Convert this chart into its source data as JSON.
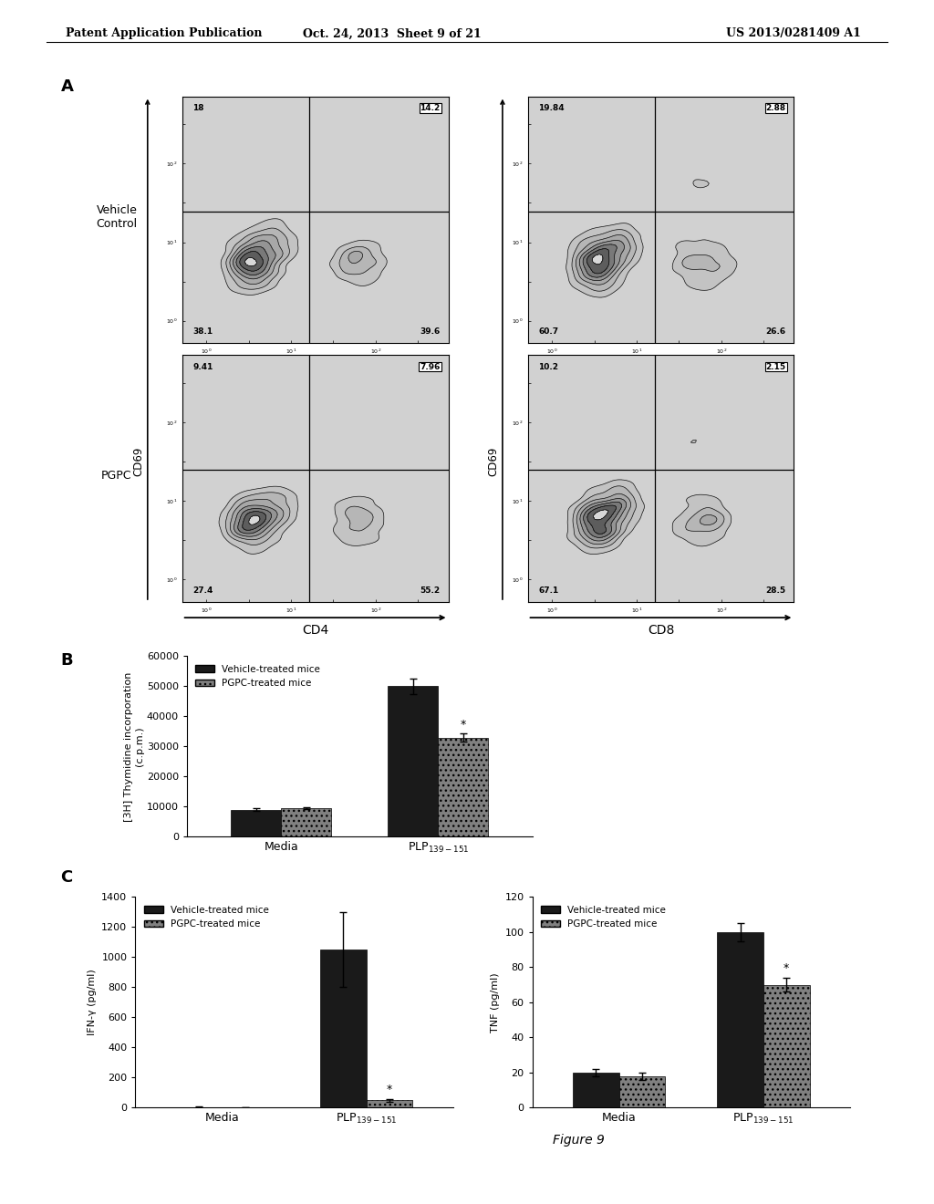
{
  "header_left": "Patent Application Publication",
  "header_mid": "Oct. 24, 2013  Sheet 9 of 21",
  "header_right": "US 2013/0281409 A1",
  "panel_A_label": "A",
  "panel_B_label": "B",
  "panel_C_label": "C",
  "figure_caption": "Figure 9",
  "row_labels": [
    "Vehicle\nControl",
    "PGPC"
  ],
  "cd69_label": "CD69",
  "flow_numbers": [
    {
      "tl": "18",
      "tr": "14.2",
      "bl": "38.1",
      "br": "39.6"
    },
    {
      "tl": "19.84",
      "tr": "2.88",
      "bl": "60.7",
      "br": "26.6"
    },
    {
      "tl": "9.41",
      "tr": "7.96",
      "bl": "27.4",
      "br": "55.2"
    },
    {
      "tl": "10.2",
      "tr": "2.15",
      "bl": "67.1",
      "br": "28.5"
    }
  ],
  "bar_B_vehicle": [
    9000,
    50000
  ],
  "bar_B_pgpc": [
    9500,
    33000
  ],
  "bar_B_vehicle_err": [
    500,
    2500
  ],
  "bar_B_pgpc_err": [
    400,
    1500
  ],
  "bar_B_ylabel_line1": "[3H] Thymidine incorporation",
  "bar_B_ylabel_line2": "(c.p.m.)",
  "bar_B_yticks": [
    0,
    10000,
    20000,
    30000,
    40000,
    50000,
    60000
  ],
  "bar_C1_vehicle": [
    5,
    1050
  ],
  "bar_C1_pgpc": [
    4,
    50
  ],
  "bar_C1_vehicle_err": [
    1,
    250
  ],
  "bar_C1_pgpc_err": [
    1,
    10
  ],
  "bar_C1_ylabel": "IFN-γ (pg/ml)",
  "bar_C1_yticks": [
    0,
    200,
    400,
    600,
    800,
    1000,
    1200,
    1400
  ],
  "bar_C2_vehicle": [
    20,
    100
  ],
  "bar_C2_pgpc": [
    18,
    70
  ],
  "bar_C2_vehicle_err": [
    2,
    5
  ],
  "bar_C2_pgpc_err": [
    2,
    4
  ],
  "bar_C2_ylabel": "TNF (pg/ml)",
  "bar_C2_yticks": [
    0,
    20,
    40,
    60,
    80,
    100,
    120
  ],
  "legend_vehicle": "Vehicle-treated mice",
  "legend_pgpc": "PGPC-treated mice",
  "color_vehicle": "#1a1a1a",
  "color_pgpc": "#808080",
  "color_bg": "#ffffff"
}
